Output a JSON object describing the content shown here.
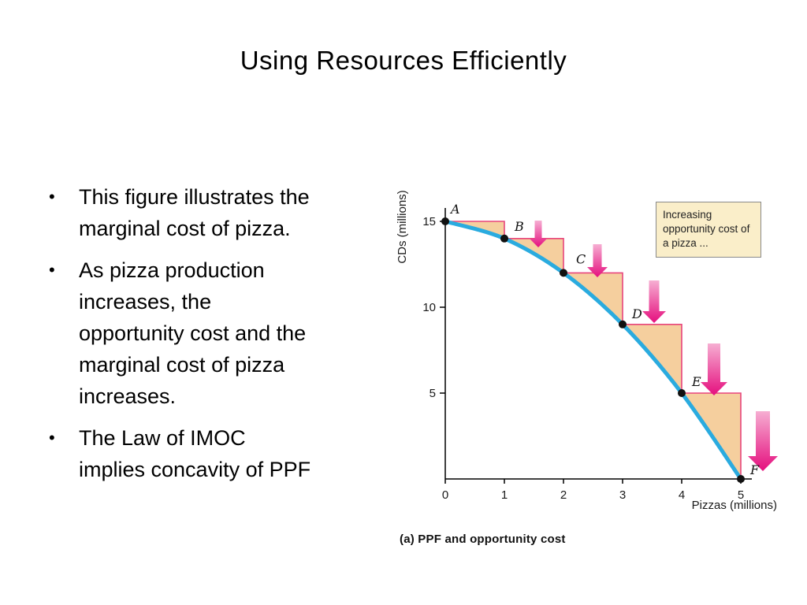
{
  "slide": {
    "title": "Using Resources Efficiently",
    "bullet_glyph": "•",
    "bullets": [
      "This figure illustrates the\nmarginal cost of pizza.",
      "As pizza production\nincreases, the\nopportunity cost and the\nmarginal cost of pizza\nincreases.",
      "The Law of IMOC\nimplies concavity of PPF"
    ]
  },
  "chart_data": {
    "type": "line",
    "title": "",
    "xlabel": "Pizzas (millions)",
    "ylabel": "CDs (millions)",
    "xlim": [
      0,
      5
    ],
    "ylim": [
      0,
      15
    ],
    "x_ticks": [
      0,
      1,
      2,
      3,
      4,
      5
    ],
    "y_ticks": [
      5,
      10,
      15
    ],
    "grid": false,
    "points": [
      {
        "label": "A",
        "x": 0,
        "y": 15
      },
      {
        "label": "B",
        "x": 1,
        "y": 14
      },
      {
        "label": "C",
        "x": 2,
        "y": 12
      },
      {
        "label": "D",
        "x": 3,
        "y": 9
      },
      {
        "label": "E",
        "x": 4,
        "y": 5
      },
      {
        "label": "F",
        "x": 5,
        "y": 0
      }
    ],
    "series": [
      {
        "name": "PPF",
        "x": [
          0,
          1,
          2,
          3,
          4,
          5
        ],
        "values": [
          15,
          14,
          12,
          9,
          5,
          0
        ]
      }
    ],
    "annotation_box": "Increasing opportunity cost of a pizza ...",
    "caption": "(a) PPF and opportunity cost",
    "colors": {
      "curve": "#2aabdf",
      "step_fill": "#f5cf9e",
      "step_stroke": "#e8457c",
      "arrow_start": "#f6aed2",
      "arrow_end": "#e50f7e",
      "annotation_bg": "#faeec9",
      "annotation_border": "#8a8a8a"
    }
  }
}
